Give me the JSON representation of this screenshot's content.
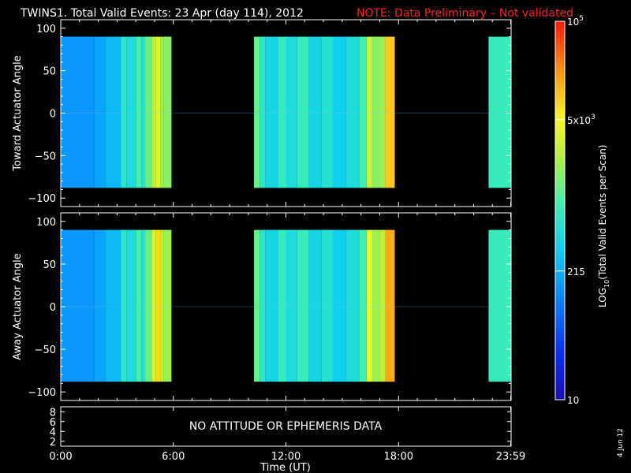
{
  "header": {
    "title": "TWINS1. Total Valid Events: 23 Apr (day 114), 2012",
    "note": "NOTE: Data Preliminary – Not validated",
    "note_color": "#ff2020"
  },
  "chart_data": [
    {
      "type": "heatmap",
      "ylabel": "Toward Actuator Angle",
      "ylim": [
        -110,
        110
      ],
      "yticks": [
        "100",
        "50",
        "0",
        "−50",
        "−100"
      ],
      "ytick_values": [
        100,
        50,
        0,
        -50,
        -100
      ],
      "data_ylim": [
        -88,
        90
      ],
      "xlim": [
        0,
        24
      ],
      "segments": [
        {
          "start": 0.0,
          "end": 5.9,
          "bands": [
            [
              0,
              1.8,
              0.3
            ],
            [
              1.8,
              2.4,
              0.32
            ],
            [
              2.4,
              3.2,
              0.36
            ],
            [
              3.2,
              3.5,
              0.48
            ],
            [
              3.5,
              4.0,
              0.44
            ],
            [
              4.0,
              4.3,
              0.52
            ],
            [
              4.3,
              4.5,
              0.46
            ],
            [
              4.5,
              4.85,
              0.56
            ],
            [
              4.85,
              5.05,
              0.66
            ],
            [
              5.05,
              5.3,
              0.7
            ],
            [
              5.3,
              5.5,
              0.62
            ],
            [
              5.5,
              5.9,
              0.6
            ]
          ]
        },
        {
          "start": 10.3,
          "end": 17.8,
          "bands": [
            [
              10.3,
              10.6,
              0.56
            ],
            [
              10.6,
              10.9,
              0.48
            ],
            [
              10.9,
              11.6,
              0.42
            ],
            [
              11.6,
              12.0,
              0.5
            ],
            [
              12.0,
              12.6,
              0.44
            ],
            [
              12.6,
              13.2,
              0.5
            ],
            [
              13.2,
              13.9,
              0.42
            ],
            [
              13.9,
              14.5,
              0.46
            ],
            [
              14.5,
              15.2,
              0.4
            ],
            [
              15.2,
              15.9,
              0.44
            ],
            [
              15.9,
              16.3,
              0.52
            ],
            [
              16.3,
              16.6,
              0.68
            ],
            [
              16.6,
              17.0,
              0.6
            ],
            [
              17.0,
              17.3,
              0.62
            ],
            [
              17.3,
              17.8,
              0.8
            ]
          ]
        },
        {
          "start": 22.8,
          "end": 23.98,
          "bands": [
            [
              22.8,
              23.98,
              0.5
            ]
          ]
        }
      ]
    },
    {
      "type": "heatmap",
      "ylabel": "Away Actuator Angle",
      "ylim": [
        -110,
        110
      ],
      "yticks": [
        "100",
        "50",
        "0",
        "−50",
        "−100"
      ],
      "ytick_values": [
        100,
        50,
        0,
        -50,
        -100
      ],
      "data_ylim": [
        -88,
        90
      ],
      "xlim": [
        0,
        24
      ],
      "segments": [
        {
          "start": 0.0,
          "end": 5.9,
          "bands": [
            [
              0,
              1.8,
              0.3
            ],
            [
              1.8,
              2.4,
              0.32
            ],
            [
              2.4,
              3.2,
              0.36
            ],
            [
              3.2,
              3.5,
              0.48
            ],
            [
              3.5,
              4.0,
              0.44
            ],
            [
              4.0,
              4.3,
              0.52
            ],
            [
              4.3,
              4.5,
              0.46
            ],
            [
              4.5,
              4.85,
              0.56
            ],
            [
              4.85,
              5.05,
              0.7
            ],
            [
              5.05,
              5.3,
              0.78
            ],
            [
              5.3,
              5.5,
              0.66
            ],
            [
              5.5,
              5.9,
              0.62
            ]
          ]
        },
        {
          "start": 10.3,
          "end": 17.8,
          "bands": [
            [
              10.3,
              10.6,
              0.56
            ],
            [
              10.6,
              10.9,
              0.48
            ],
            [
              10.9,
              11.6,
              0.42
            ],
            [
              11.6,
              12.0,
              0.5
            ],
            [
              12.0,
              12.6,
              0.44
            ],
            [
              12.6,
              13.2,
              0.5
            ],
            [
              13.2,
              13.9,
              0.42
            ],
            [
              13.9,
              14.5,
              0.46
            ],
            [
              14.5,
              15.2,
              0.4
            ],
            [
              15.2,
              15.9,
              0.44
            ],
            [
              15.9,
              16.3,
              0.52
            ],
            [
              16.3,
              16.6,
              0.72
            ],
            [
              16.6,
              17.0,
              0.62
            ],
            [
              17.0,
              17.3,
              0.66
            ],
            [
              17.3,
              17.8,
              0.84
            ]
          ]
        },
        {
          "start": 22.8,
          "end": 23.98,
          "bands": [
            [
              22.8,
              23.98,
              0.5
            ]
          ]
        }
      ]
    }
  ],
  "ephemeris": {
    "message": "NO ATTITUDE OR EPHEMERIS DATA",
    "yticks": [
      "8",
      "6",
      "4",
      "2"
    ],
    "ytick_values": [
      8,
      6,
      4,
      2
    ],
    "ylim": [
      1,
      9
    ]
  },
  "x_axis": {
    "label": "Time (UT)",
    "ticks": [
      "0:00",
      "6:00",
      "12:00",
      "18:00",
      "23:59"
    ],
    "tick_values": [
      0,
      6,
      12,
      18,
      23.98
    ]
  },
  "colorbar": {
    "label_main": "LOG",
    "label_sub": "10",
    "label_rest": "(Total Valid Events per Scan)",
    "ticks": [
      {
        "base": "10",
        "exp": "5",
        "pos": 1.0
      },
      {
        "base": "5x10",
        "exp": "3",
        "pos": 0.74
      },
      {
        "base": "215",
        "exp": "",
        "pos": 0.34
      },
      {
        "base": "10",
        "exp": "",
        "pos": 0.0
      }
    ]
  },
  "footer": {
    "date": "4 Jun 12"
  }
}
